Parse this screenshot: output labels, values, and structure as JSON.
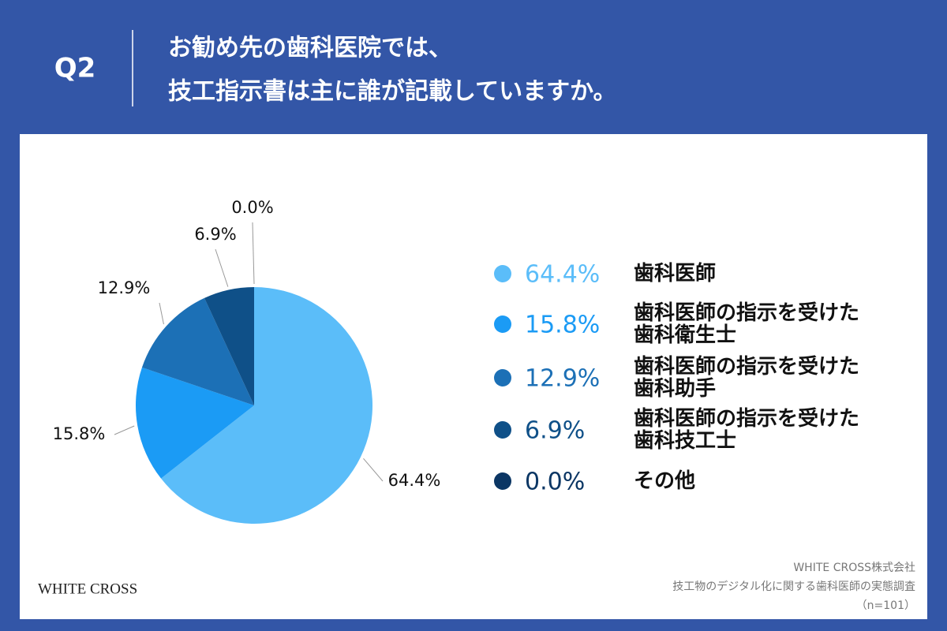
{
  "header": {
    "question": "Q2",
    "title_lines": [
      "お勧め先の歯科医院では、",
      "技工指示書は主に誰が記載していますか。"
    ]
  },
  "chart_data": {
    "type": "pie",
    "categories": [
      "歯科医師",
      "歯科医師の指示を受けた\n歯科衛生士",
      "歯科医師の指示を受けた\n歯科助手",
      "歯科医師の指示を受けた\n歯科技工士",
      "その他"
    ],
    "values": [
      64.4,
      15.8,
      12.9,
      6.9,
      0.0
    ],
    "value_labels": [
      "64.4%",
      "15.8%",
      "12.9%",
      "6.9%",
      "0.0%"
    ],
    "colors": [
      "#5bbdf9",
      "#1b9bf5",
      "#1c70b6",
      "#0f5088",
      "#0b3664"
    ]
  },
  "footer": {
    "logo": "WHITE CROSS",
    "company": "WHITE CROSS株式会社",
    "survey": "技工物のデジタル化に関する歯科医師の実態調査",
    "sample": "（n=101）"
  }
}
